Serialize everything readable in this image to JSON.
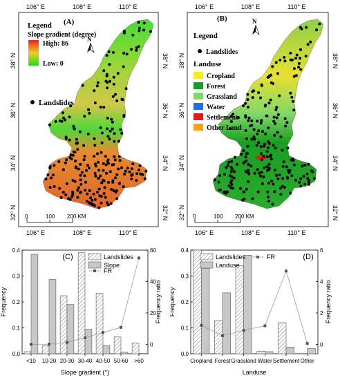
{
  "panels": {
    "A": {
      "label": "(A)",
      "legend_title": "Legend",
      "legend_subtitle": "Slope gradient (degree)",
      "high_label": "High: 86",
      "low_label": "Low: 0",
      "landslides_label": "Landslides",
      "north_label": "N",
      "top_ticks": [
        "106° E",
        "108° E",
        "110° E"
      ],
      "bottom_ticks": [
        "106° E",
        "108° E",
        "110° E"
      ],
      "lat_ticks": [
        "38° N",
        "36° N",
        "34° N",
        "32° N"
      ],
      "scale_labels": [
        "0",
        "100",
        "200 KM"
      ],
      "colors": {
        "high": "#e8261a",
        "mid": "#e8d020",
        "low": "#22e01c"
      }
    },
    "B": {
      "label": "(B)",
      "legend_title": "Legend",
      "landslides_label": "Landslides",
      "landuse_title": "Landuse",
      "north_label": "N",
      "classes": [
        {
          "name": "Cropland",
          "color": "#f4ee12"
        },
        {
          "name": "Forest",
          "color": "#1a9e22"
        },
        {
          "name": "Grassland",
          "color": "#7fd86a"
        },
        {
          "name": "Water",
          "color": "#1e6fe8"
        },
        {
          "name": "Settlement",
          "color": "#e81818"
        },
        {
          "name": "Other Land",
          "color": "#f5a21a"
        }
      ],
      "top_ticks": [
        "106° E",
        "108° E",
        "110° E"
      ],
      "bottom_ticks": [
        "106° E",
        "108° E",
        "110° E"
      ],
      "lat_ticks": [
        "38° N",
        "36° N",
        "34° N",
        "32° N"
      ],
      "scale_labels": [
        "0",
        "100",
        "200 KM"
      ]
    }
  },
  "chart_data": [
    {
      "type": "bar",
      "panel": "(C)",
      "categories": [
        "<10",
        "10-20",
        "20-30",
        "30-40",
        "40-50",
        "50-60",
        ">60"
      ],
      "series": [
        {
          "name": "Landslides",
          "values": [
            0.008,
            0.032,
            0.224,
            0.39,
            0.233,
            0.065,
            0.042
          ]
        },
        {
          "name": "Slope",
          "values": [
            0.384,
            0.287,
            0.19,
            0.094,
            0.031,
            0.006,
            0.001
          ]
        },
        {
          "name": "FR",
          "axis": "right",
          "values": [
            0.02,
            0.11,
            1.18,
            4.15,
            7.5,
            10.8,
            55
          ]
        }
      ],
      "xlabel": "Slope gradient (°)",
      "ylabel": "Frequency",
      "y2label": "Frequency ratio",
      "ylim": [
        0,
        0.4
      ],
      "y2lim": [
        -6,
        60
      ],
      "yticks": [
        "0.0",
        "0.1",
        "0.2",
        "0.3",
        "0.4"
      ],
      "y2ticks": [
        "0",
        "20",
        "40",
        "60"
      ]
    },
    {
      "type": "bar",
      "panel": "(D)",
      "categories": [
        "Cropland",
        "Forest",
        "Grassland",
        "Water",
        "Settlement",
        "Other"
      ],
      "series": [
        {
          "name": "Landslides",
          "values": [
            0.4,
            0.128,
            0.34,
            0.01,
            0.12,
            0.001
          ]
        },
        {
          "name": "Landuse",
          "values": [
            0.33,
            0.235,
            0.38,
            0.008,
            0.026,
            0.02
          ]
        },
        {
          "name": "FR",
          "axis": "right",
          "values": [
            1.21,
            0.55,
            0.89,
            1.18,
            4.67,
            0.05
          ]
        }
      ],
      "xlabel": "Landuse",
      "ylabel": "Frequency",
      "y2label": "Frequency ratio",
      "ylim": [
        0,
        0.4
      ],
      "y2lim": [
        -0.6,
        6
      ],
      "yticks": [
        "0.0",
        "0.1",
        "0.2",
        "0.3",
        "0.4"
      ],
      "y2ticks": [
        "0",
        "2",
        "4",
        "6"
      ]
    }
  ]
}
